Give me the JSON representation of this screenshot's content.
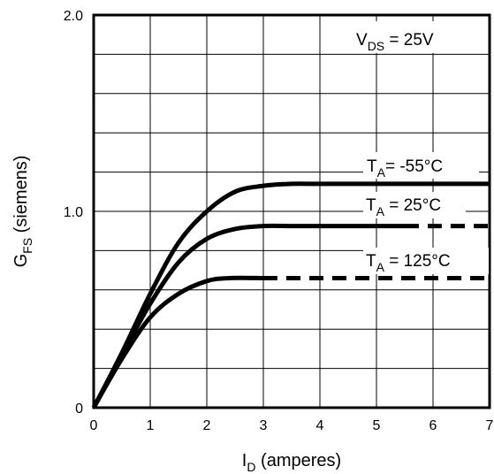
{
  "chart_data": {
    "type": "line",
    "xlabel": {
      "main": "I",
      "sub": "D",
      "rest": " (amperes)"
    },
    "ylabel": {
      "main": "G",
      "sub": "FS",
      "rest": " (siemens)"
    },
    "xlim": [
      0,
      7
    ],
    "ylim": [
      0,
      2.0
    ],
    "x_ticks": [
      0,
      1,
      2,
      3,
      4,
      5,
      6,
      7
    ],
    "x_tick_labels": [
      "0",
      "1",
      "2",
      "3",
      "4",
      "5",
      "6",
      "7"
    ],
    "y_ticks": [
      0,
      1.0,
      2.0
    ],
    "y_tick_labels": [
      "0",
      "1.0",
      "2.0"
    ],
    "grid": true,
    "grid_x_step": 1,
    "grid_y_step": 0.2,
    "condition": {
      "main": "V",
      "sub": "DS",
      "rest": " = 25V"
    },
    "series": [
      {
        "name": {
          "main": "T",
          "sub": "A",
          "rest": "= -55°C"
        },
        "x": [
          0,
          0.5,
          1,
          1.5,
          2,
          2.5,
          3,
          3.5,
          4,
          5,
          6,
          7
        ],
        "y": [
          0,
          0.28,
          0.58,
          0.84,
          1.0,
          1.1,
          1.13,
          1.14,
          1.14,
          1.14,
          1.14,
          1.14
        ],
        "dashed_from": null
      },
      {
        "name": {
          "main": "T",
          "sub": "A",
          "rest": " = 25°C"
        },
        "x": [
          0,
          0.5,
          1,
          1.5,
          2,
          2.5,
          3,
          3.5,
          4,
          5,
          5.5,
          6,
          7
        ],
        "y": [
          0,
          0.27,
          0.53,
          0.74,
          0.86,
          0.91,
          0.925,
          0.925,
          0.925,
          0.925,
          0.925,
          0.925,
          0.925
        ],
        "dashed_from": 5.5
      },
      {
        "name": {
          "main": "T",
          "sub": "A",
          "rest": " = 125°C"
        },
        "x": [
          0,
          0.5,
          1,
          1.5,
          2,
          2.4,
          3,
          4,
          5,
          6,
          7
        ],
        "y": [
          0,
          0.25,
          0.46,
          0.58,
          0.645,
          0.66,
          0.66,
          0.66,
          0.66,
          0.66,
          0.66
        ],
        "dashed_from": 3.0
      }
    ]
  }
}
